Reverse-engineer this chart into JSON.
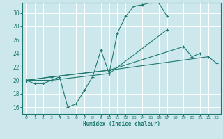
{
  "xlabel": "Humidex (Indice chaleur)",
  "bg_color": "#cce8ec",
  "grid_color": "#ffffff",
  "line_color": "#1e7870",
  "xlim": [
    -0.5,
    23.5
  ],
  "ylim": [
    15.0,
    31.5
  ],
  "xticks": [
    0,
    1,
    2,
    3,
    4,
    5,
    6,
    7,
    8,
    9,
    10,
    11,
    12,
    13,
    14,
    15,
    16,
    17,
    18,
    19,
    20,
    21,
    22,
    23
  ],
  "yticks": [
    16,
    18,
    20,
    22,
    24,
    26,
    28,
    30
  ],
  "series_clean": [
    {
      "x": [
        0,
        1,
        2,
        3,
        4,
        5,
        6,
        7,
        8,
        9,
        10,
        11,
        12,
        13,
        14,
        15,
        16,
        17
      ],
      "y": [
        20.0,
        19.5,
        19.5,
        20.0,
        20.5,
        16.0,
        16.5,
        18.5,
        20.5,
        24.5,
        21.0,
        27.0,
        29.5,
        31.0,
        31.2,
        31.5,
        31.5,
        29.5
      ]
    },
    {
      "x": [
        0,
        3,
        10,
        17
      ],
      "y": [
        20.0,
        20.0,
        21.0,
        27.5
      ]
    },
    {
      "x": [
        0,
        3,
        10,
        19,
        20,
        21
      ],
      "y": [
        20.0,
        20.5,
        21.5,
        25.0,
        23.5,
        24.0
      ]
    },
    {
      "x": [
        0,
        3,
        10,
        22,
        23
      ],
      "y": [
        20.0,
        20.5,
        21.5,
        23.5,
        22.5
      ]
    }
  ]
}
